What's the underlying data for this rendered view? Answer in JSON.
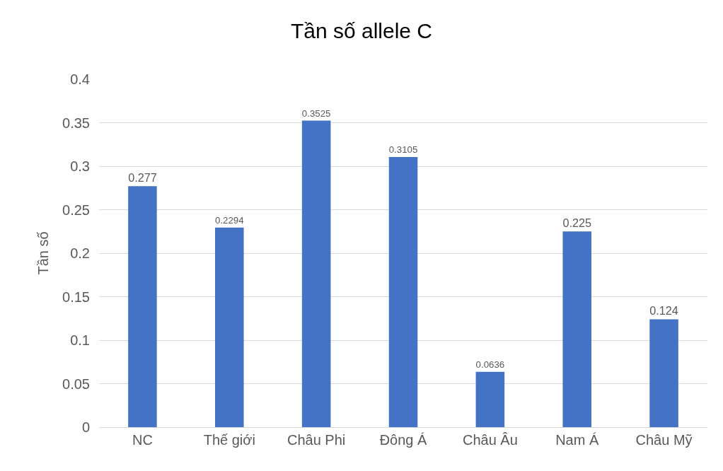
{
  "chart_data": {
    "type": "bar",
    "title": "Tần số allele C",
    "ylabel": "Tần số",
    "categories": [
      "NC",
      "Thế giới",
      "Châu Phi",
      "Đông Á",
      "Châu Âu",
      "Nam Á",
      "Châu Mỹ"
    ],
    "values": [
      0.277,
      0.2294,
      0.3525,
      0.3105,
      0.0636,
      0.225,
      0.124
    ],
    "color": "#4472c4",
    "ylim": [
      0,
      0.4
    ],
    "yticks": [
      0,
      0.05,
      0.1,
      0.15,
      0.2,
      0.25,
      0.3,
      0.35,
      0.4
    ],
    "grid": "y",
    "data_labels": true
  }
}
